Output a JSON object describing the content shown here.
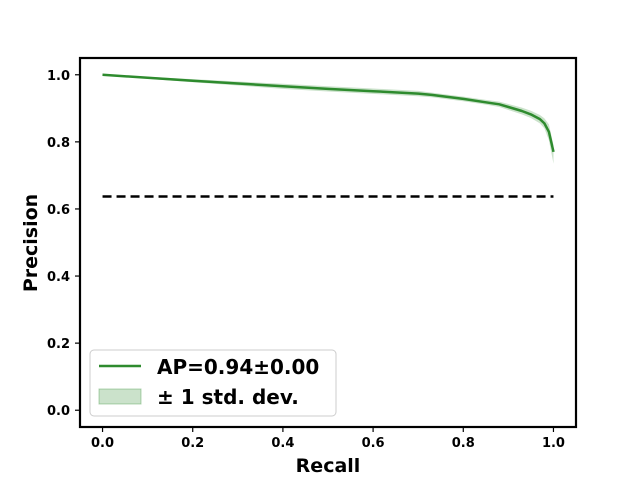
{
  "chart_data": {
    "type": "line",
    "title": "",
    "xlabel": "Recall",
    "ylabel": "Precision",
    "xlim": [
      -0.05,
      1.05
    ],
    "ylim": [
      -0.05,
      1.05
    ],
    "xticks": [
      0.0,
      0.2,
      0.4,
      0.6,
      0.8,
      1.0
    ],
    "xtick_labels": [
      "0.0",
      "0.2",
      "0.4",
      "0.6",
      "0.8",
      "1.0"
    ],
    "yticks": [
      0.0,
      0.2,
      0.4,
      0.6,
      0.8,
      1.0
    ],
    "ytick_labels": [
      "0.0",
      "0.2",
      "0.4",
      "0.6",
      "0.8",
      "1.0"
    ],
    "grid": false,
    "legend_position": "lower-left",
    "series": [
      {
        "name": "AP=0.94±0.00",
        "color": "#2e8b2e",
        "x": [
          0.0,
          0.1,
          0.2,
          0.3,
          0.4,
          0.5,
          0.6,
          0.7,
          0.73,
          0.8,
          0.85,
          0.88,
          0.9,
          0.93,
          0.95,
          0.97,
          0.98,
          0.99,
          1.0
        ],
        "y": [
          1.0,
          0.991,
          0.982,
          0.974,
          0.966,
          0.958,
          0.951,
          0.944,
          0.94,
          0.928,
          0.918,
          0.912,
          0.904,
          0.892,
          0.882,
          0.868,
          0.855,
          0.83,
          0.77
        ],
        "band_lower": [
          0.999,
          0.988,
          0.978,
          0.968,
          0.958,
          0.95,
          0.943,
          0.936,
          0.933,
          0.921,
          0.911,
          0.904,
          0.895,
          0.882,
          0.871,
          0.855,
          0.84,
          0.805,
          0.735
        ],
        "band_upper": [
          1.001,
          0.994,
          0.987,
          0.98,
          0.973,
          0.966,
          0.959,
          0.952,
          0.947,
          0.935,
          0.925,
          0.92,
          0.913,
          0.902,
          0.893,
          0.88,
          0.87,
          0.852,
          0.79
        ]
      }
    ],
    "band_label": "± 1 std. dev.",
    "band_color": "#2e8b2e",
    "baseline": {
      "y": 0.637,
      "x": [
        0.0,
        1.0
      ],
      "color": "#000000",
      "style": "dashed"
    }
  }
}
